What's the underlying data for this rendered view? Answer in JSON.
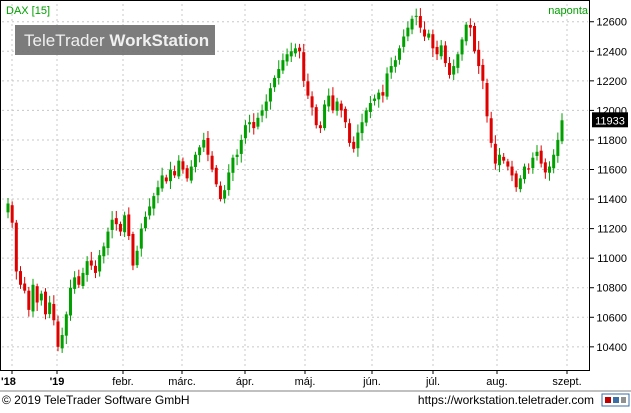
{
  "header": {
    "symbol": "DAX [15]",
    "period": "naponta",
    "watermark": "TeleTrader ",
    "watermark_bold": "WorkStation"
  },
  "footer": {
    "copyright": "© 2019 TeleTrader Software GmbH",
    "url": "https://workstation.teletrader.com"
  },
  "colors": {
    "up": "#00a000",
    "down": "#e00000",
    "grid": "#c8c8c8",
    "symbol_text": "#00a000",
    "watermark_bg": "#707070",
    "price_tag_bg": "#000000"
  },
  "chart_data": {
    "type": "candlestick",
    "ylim": [
      10250,
      12720
    ],
    "yticks": [
      10400,
      10600,
      10800,
      11000,
      11200,
      11400,
      11600,
      11800,
      12000,
      12200,
      12400,
      12600
    ],
    "xlabels": [
      "'18",
      "'19",
      "febr.",
      "márc.",
      "ápr.",
      "máj.",
      "jún.",
      "júl.",
      "aug.",
      "szept."
    ],
    "last_price": "11933",
    "last_value": 11933,
    "closes": [
      11370,
      11240,
      10910,
      10820,
      10780,
      10650,
      10820,
      10700,
      10760,
      10620,
      10700,
      10580,
      10400,
      10480,
      10620,
      10800,
      10870,
      10820,
      10900,
      10980,
      10950,
      10900,
      11020,
      11080,
      11180,
      11260,
      11230,
      11180,
      11290,
      11150,
      10950,
      11050,
      11200,
      11280,
      11350,
      11420,
      11480,
      11560,
      11520,
      11600,
      11560,
      11660,
      11600,
      11540,
      11620,
      11700,
      11750,
      11800,
      11700,
      11600,
      11500,
      11400,
      11460,
      11580,
      11680,
      11700,
      11800,
      11900,
      11920,
      11880,
      11950,
      12000,
      12060,
      12150,
      12220,
      12280,
      12340,
      12380,
      12400,
      12420,
      12400,
      12200,
      12100,
      12020,
      11900,
      11880,
      12040,
      12100,
      12000,
      12060,
      12000,
      11920,
      11780,
      11740,
      11850,
      11920,
      12000,
      12050,
      12080,
      12120,
      12100,
      12250,
      12300,
      12340,
      12420,
      12500,
      12560,
      12620,
      12640,
      12560,
      12500,
      12520,
      12420,
      12380,
      12440,
      12320,
      12240,
      12300,
      12380,
      12480,
      12580,
      12560,
      12400,
      12300,
      12200,
      11960,
      11780,
      11640,
      11700,
      11660,
      11620,
      11560,
      11480,
      11540,
      11620,
      11600,
      11680,
      11720,
      11640,
      11580,
      11620,
      11700,
      11800,
      11933
    ]
  }
}
